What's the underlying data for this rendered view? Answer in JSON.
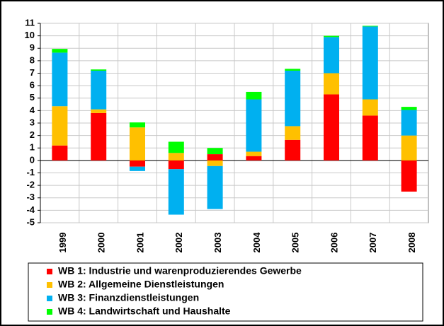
{
  "chart_data": {
    "type": "stacked-bar",
    "categories": [
      "1999",
      "2000",
      "2001",
      "2002",
      "2003",
      "2004",
      "2005",
      "2006",
      "2007",
      "2008"
    ],
    "series": [
      {
        "name": "WB 1: Industrie und warenproduzierendes Gewerbe",
        "color": "#ff0000",
        "values": [
          1.2,
          3.8,
          -0.5,
          -0.7,
          0.5,
          0.35,
          1.65,
          5.3,
          3.6,
          -2.5
        ]
      },
      {
        "name": "WB 2: Allgemeine Dienstleistungen",
        "color": "#ffc000",
        "values": [
          3.15,
          0.3,
          2.65,
          0.6,
          -0.45,
          0.35,
          1.1,
          1.7,
          1.3,
          2.0
        ]
      },
      {
        "name": "WB 3: Finanzdienstleistungen",
        "color": "#00b0f0",
        "values": [
          4.3,
          3.1,
          -0.35,
          -3.65,
          -3.45,
          4.2,
          4.45,
          2.9,
          5.85,
          2.05
        ]
      },
      {
        "name": "WB 4: Landwirtschaft und Haushalte",
        "color": "#00ff00",
        "values": [
          0.3,
          0.1,
          0.4,
          0.9,
          0.5,
          0.6,
          0.15,
          0.1,
          0.05,
          0.25
        ]
      }
    ],
    "ylim": [
      -5,
      11
    ],
    "yticks": [
      -5,
      -4,
      -3,
      -2,
      -1,
      0,
      1,
      2,
      3,
      4,
      5,
      6,
      7,
      8,
      9,
      10,
      11
    ],
    "grid": true
  }
}
